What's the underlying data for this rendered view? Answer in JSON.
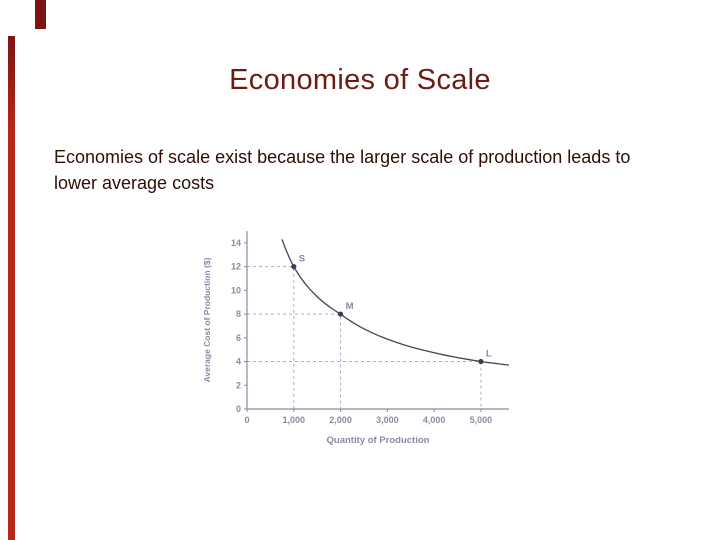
{
  "slide": {
    "title": "Economies of Scale",
    "body": "Economies of scale exist because the larger scale of production leads to lower average costs"
  },
  "colors": {
    "title": "#6e1b11",
    "body": "#2f0e06",
    "accent_bar": "#b5271b",
    "accent_block": "#7c1511"
  },
  "chart_data": {
    "type": "line",
    "title": "",
    "xlabel": "Quantity of Production",
    "ylabel": "Average Cost of Production ($)",
    "xlim": [
      0,
      5600
    ],
    "ylim": [
      0,
      15
    ],
    "x_ticks": [
      0,
      1000,
      2000,
      3000,
      4000,
      5000
    ],
    "x_tick_labels": [
      "0",
      "1,000",
      "2,000",
      "3,000",
      "4,000",
      "5,000"
    ],
    "y_ticks": [
      0,
      2,
      4,
      6,
      8,
      10,
      12,
      14
    ],
    "points": [
      {
        "label": "S",
        "x": 1000,
        "y": 12
      },
      {
        "label": "M",
        "x": 2000,
        "y": 8
      },
      {
        "label": "L",
        "x": 5000,
        "y": 4
      }
    ],
    "curve_anchors": [
      {
        "x": 750,
        "y": 14.3
      },
      {
        "x": 1000,
        "y": 12
      },
      {
        "x": 2000,
        "y": 8
      },
      {
        "x": 5000,
        "y": 4
      },
      {
        "x": 5600,
        "y": 3.7
      }
    ],
    "grid": false,
    "legend": "none",
    "colors": {
      "curve": "#44445a",
      "guide": "#b6a8cf",
      "axis": "#8a8aa5",
      "label": "#8a8aa5",
      "point": "#3c3c55"
    }
  }
}
